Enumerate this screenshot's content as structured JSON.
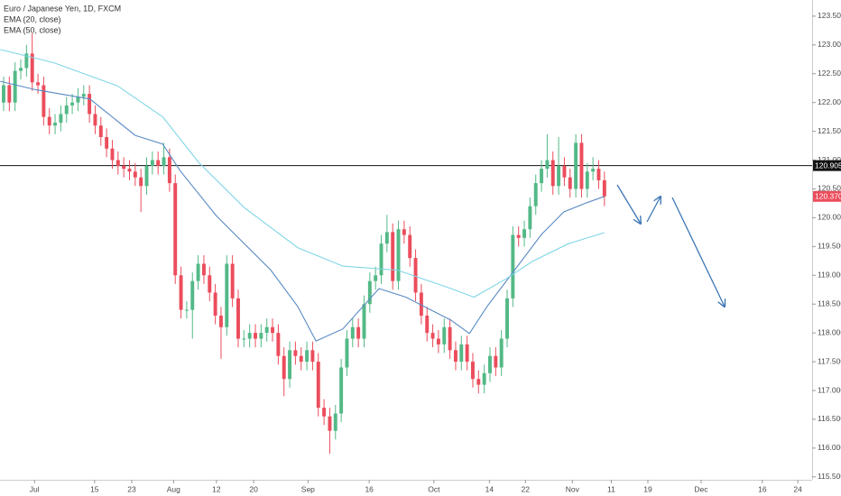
{
  "chart_data": {
    "type": "candlestick",
    "title": "Euro / Japanese Yen, 1D, FXCM",
    "open": [
      122.0,
      122.3,
      122.0,
      122.55,
      122.6,
      122.85,
      122.35,
      122.3,
      121.75,
      121.6,
      121.65,
      121.8,
      121.95,
      122.0,
      122.1,
      122.15,
      121.8,
      121.6,
      121.4,
      121.2,
      121.0,
      120.9,
      120.85,
      120.8,
      120.7,
      120.55,
      120.9,
      121.0,
      120.9,
      121.05,
      120.6,
      119.0,
      118.4,
      118.4,
      118.9,
      119.2,
      119.0,
      118.7,
      118.3,
      118.1,
      119.2,
      118.6,
      117.9,
      117.9,
      118.0,
      117.9,
      118.0,
      118.1,
      118.0,
      117.6,
      117.2,
      117.7,
      117.6,
      117.5,
      117.7,
      117.5,
      116.7,
      116.55,
      116.3,
      116.6,
      117.4,
      117.9,
      118.1,
      117.9,
      118.5,
      118.9,
      119.0,
      119.55,
      119.75,
      118.9,
      119.8,
      119.7,
      119.3,
      118.7,
      118.3,
      118.0,
      117.9,
      117.8,
      118.1,
      117.7,
      117.5,
      117.8,
      117.5,
      117.2,
      117.1,
      117.3,
      117.6,
      117.4,
      117.9,
      118.6,
      119.7,
      119.65,
      119.8,
      120.2,
      120.6,
      120.85,
      121.0,
      120.55,
      120.9,
      120.7,
      120.5,
      121.3,
      120.5,
      120.8,
      120.85,
      120.65
    ],
    "high": [
      122.45,
      122.45,
      122.7,
      122.75,
      123.0,
      123.2,
      122.5,
      122.45,
      121.9,
      121.8,
      121.95,
      122.1,
      122.15,
      122.25,
      122.3,
      122.3,
      121.95,
      121.75,
      121.55,
      121.35,
      121.15,
      121.05,
      121.0,
      120.95,
      120.85,
      121.05,
      121.15,
      121.15,
      121.3,
      121.2,
      120.75,
      119.15,
      118.55,
      119.05,
      119.35,
      119.35,
      119.15,
      118.85,
      118.45,
      119.35,
      119.35,
      118.75,
      118.05,
      118.15,
      118.15,
      118.15,
      118.25,
      118.25,
      118.15,
      117.75,
      117.85,
      117.85,
      117.75,
      117.85,
      117.85,
      117.65,
      116.85,
      116.7,
      116.75,
      117.55,
      118.05,
      118.25,
      118.25,
      118.65,
      119.05,
      119.15,
      119.7,
      120.05,
      119.9,
      119.95,
      119.95,
      119.85,
      119.45,
      118.85,
      118.45,
      118.15,
      118.05,
      118.25,
      118.25,
      117.85,
      117.95,
      117.95,
      117.65,
      117.35,
      117.45,
      117.75,
      117.75,
      118.05,
      118.75,
      119.85,
      119.85,
      119.95,
      120.35,
      120.75,
      121.0,
      121.45,
      121.15,
      121.4,
      121.05,
      120.85,
      121.45,
      121.45,
      120.95,
      121.05,
      121.0,
      120.8
    ],
    "low": [
      121.85,
      121.85,
      121.85,
      122.4,
      122.45,
      122.2,
      122.15,
      121.6,
      121.45,
      121.45,
      121.5,
      121.65,
      121.8,
      121.85,
      121.95,
      121.65,
      121.45,
      121.25,
      121.05,
      120.85,
      120.75,
      120.7,
      120.65,
      120.55,
      120.1,
      120.4,
      120.75,
      120.75,
      120.75,
      120.45,
      118.85,
      118.25,
      118.25,
      117.9,
      118.75,
      118.85,
      118.55,
      118.15,
      117.55,
      117.95,
      118.45,
      117.75,
      117.75,
      117.75,
      117.75,
      117.75,
      117.85,
      117.85,
      117.45,
      116.9,
      117.05,
      117.45,
      117.35,
      117.35,
      117.35,
      116.55,
      116.4,
      115.9,
      116.15,
      116.45,
      117.25,
      117.75,
      117.75,
      117.75,
      118.35,
      118.75,
      118.85,
      119.4,
      118.75,
      118.75,
      119.55,
      119.15,
      118.55,
      118.15,
      117.85,
      117.75,
      117.65,
      117.65,
      117.55,
      117.35,
      117.35,
      117.35,
      117.05,
      116.95,
      116.95,
      117.15,
      117.25,
      117.25,
      117.75,
      118.45,
      119.5,
      119.5,
      119.65,
      120.05,
      120.45,
      120.7,
      120.4,
      120.4,
      120.55,
      120.35,
      120.35,
      120.35,
      120.35,
      120.65,
      120.5,
      120.2
    ],
    "close": [
      122.3,
      122.0,
      122.55,
      122.6,
      122.85,
      122.35,
      122.3,
      121.75,
      121.6,
      121.65,
      121.8,
      121.95,
      122.0,
      122.1,
      122.15,
      121.8,
      121.6,
      121.4,
      121.2,
      121.0,
      120.9,
      120.85,
      120.8,
      120.7,
      120.55,
      120.9,
      121.0,
      120.9,
      121.05,
      120.6,
      119.0,
      118.4,
      118.4,
      118.9,
      119.2,
      119.0,
      118.7,
      118.3,
      118.1,
      119.2,
      118.6,
      117.9,
      117.9,
      118.0,
      117.9,
      118.0,
      118.1,
      118.0,
      117.6,
      117.2,
      117.7,
      117.6,
      117.5,
      117.7,
      117.5,
      116.7,
      116.55,
      116.3,
      116.6,
      117.4,
      117.9,
      118.1,
      117.9,
      118.5,
      118.9,
      119.0,
      119.55,
      119.75,
      118.9,
      119.8,
      119.7,
      119.3,
      118.7,
      118.3,
      118.0,
      117.9,
      117.8,
      118.1,
      117.7,
      117.5,
      117.8,
      117.5,
      117.2,
      117.1,
      117.3,
      117.6,
      117.4,
      117.9,
      118.6,
      119.7,
      119.65,
      119.8,
      120.2,
      120.6,
      120.85,
      121.0,
      120.55,
      120.9,
      120.7,
      120.5,
      121.3,
      120.5,
      120.8,
      120.85,
      120.65,
      120.37
    ],
    "up_color": "#53b987",
    "down_color": "#eb4d5c",
    "series": [
      {
        "name": "EMA (20, close)",
        "color": "#5a8bc4",
        "x": [
          -0.6,
          5.7,
          15.1,
          23.0,
          27.8,
          30.9,
          37.2,
          46.7,
          51.4,
          54.6,
          59.3,
          65.6,
          70.3,
          78.2,
          81.4,
          84.5,
          89.3,
          94.0,
          97.9,
          101.9,
          105.0
        ],
        "values": [
          122.37,
          122.22,
          122.06,
          121.43,
          121.28,
          120.81,
          120.03,
          119.09,
          118.46,
          117.86,
          118.07,
          118.77,
          118.62,
          118.22,
          117.99,
          118.46,
          119.09,
          119.71,
          120.1,
          120.26,
          120.37
        ]
      },
      {
        "name": "EMA (50, close)",
        "color": "#7fd6e6",
        "x": [
          -0.6,
          8.8,
          19.9,
          27.8,
          34.1,
          42.0,
          51.4,
          59.3,
          68.8,
          78.2,
          82.2,
          87.7,
          92.4,
          98.7,
          105.0
        ],
        "values": [
          122.92,
          122.69,
          122.29,
          121.75,
          120.96,
          120.18,
          119.48,
          119.16,
          119.09,
          118.77,
          118.62,
          118.93,
          119.24,
          119.55,
          119.74
        ]
      }
    ],
    "hline": {
      "value": 120.905,
      "label": "120.905"
    },
    "last_price": {
      "value": 120.37,
      "label": "120.370"
    },
    "xlim": [
      -0.63,
      141.3
    ],
    "ylim": [
      115.45,
      123.78
    ],
    "xticks": [
      {
        "value": 5.4,
        "label": "Jul"
      },
      {
        "value": 15.9,
        "label": "15"
      },
      {
        "value": 22.4,
        "label": "23"
      },
      {
        "value": 29.7,
        "label": "Aug"
      },
      {
        "value": 37.2,
        "label": "12"
      },
      {
        "value": 43.7,
        "label": "20"
      },
      {
        "value": 53.2,
        "label": "Sep"
      },
      {
        "value": 63.9,
        "label": "16"
      },
      {
        "value": 75.2,
        "label": "Oct"
      },
      {
        "value": 84.9,
        "label": "14"
      },
      {
        "value": 91.2,
        "label": "22"
      },
      {
        "value": 99.4,
        "label": "Nov"
      },
      {
        "value": 106.2,
        "label": "11"
      },
      {
        "value": 112.6,
        "label": "19"
      },
      {
        "value": 121.9,
        "label": "Dec"
      },
      {
        "value": 132.6,
        "label": "16"
      },
      {
        "value": 138.8,
        "label": "24"
      }
    ],
    "yticks": [
      {
        "value": 115.5,
        "label": "115.500"
      },
      {
        "value": 116,
        "label": "116.000"
      },
      {
        "value": 116.5,
        "label": "116.500"
      },
      {
        "value": 117,
        "label": "117.000"
      },
      {
        "value": 117.5,
        "label": "117.500"
      },
      {
        "value": 118,
        "label": "118.000"
      },
      {
        "value": 118.5,
        "label": "118.500"
      },
      {
        "value": 119,
        "label": "119.000"
      },
      {
        "value": 119.5,
        "label": "119.500"
      },
      {
        "value": 120,
        "label": "120.000"
      },
      {
        "value": 120.5,
        "label": "120.500"
      },
      {
        "value": 121,
        "label": "121.000"
      },
      {
        "value": 121.5,
        "label": "121.500"
      },
      {
        "value": 122,
        "label": "122.000"
      },
      {
        "value": 122.5,
        "label": "122.500"
      },
      {
        "value": 123,
        "label": "123.000"
      },
      {
        "value": 123.5,
        "label": "123.500"
      }
    ]
  }
}
